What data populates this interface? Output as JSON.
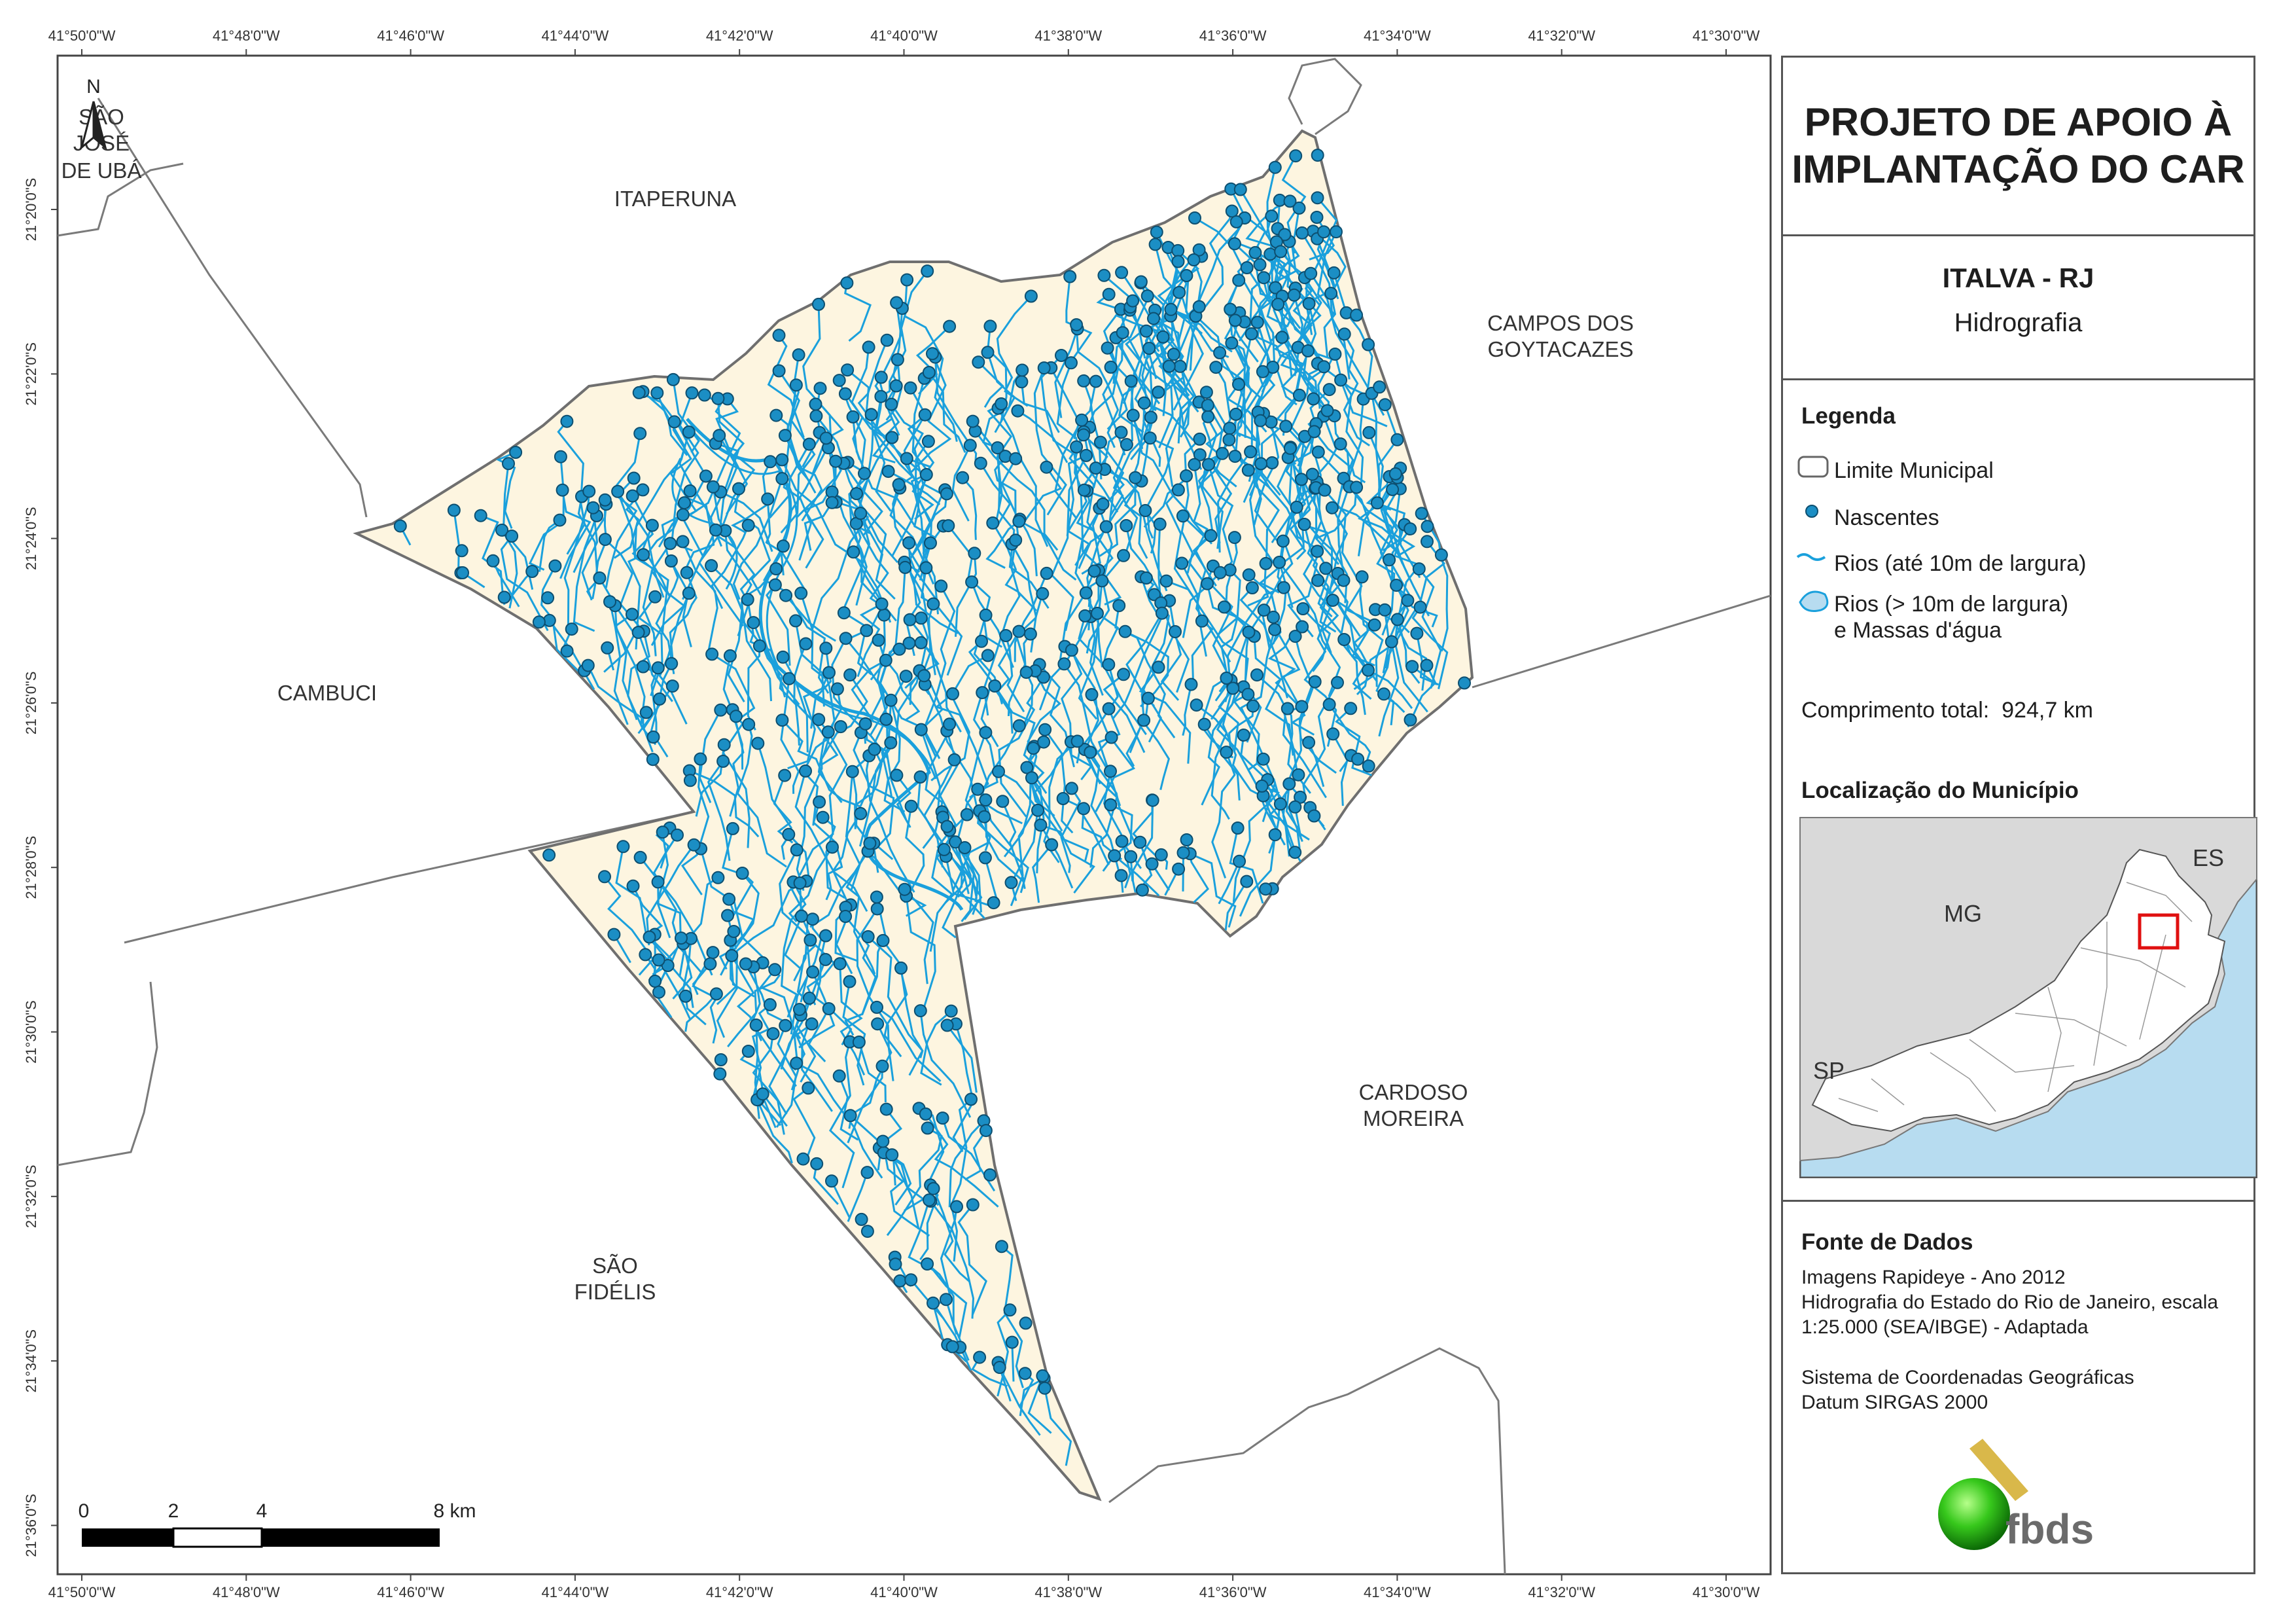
{
  "title": {
    "line1": "PROJETO DE APOIO À",
    "line2": "IMPLANTAÇÃO DO CAR"
  },
  "subtitle": {
    "municipality": "ITALVA - RJ",
    "theme": "Hidrografia"
  },
  "legend": {
    "heading": "Legenda",
    "items": [
      {
        "label": "Limite Municipal",
        "icon": "boundary-rect-icon"
      },
      {
        "label": "Nascentes",
        "icon": "spring-dot-icon"
      },
      {
        "label": "Rios (até 10m de largura)",
        "icon": "river-line-icon"
      },
      {
        "label": "Rios (> 10m de largura)",
        "label2": "e Massas d'água",
        "icon": "water-body-icon"
      }
    ],
    "total_length_label": "Comprimento total:",
    "total_length_value": "924,7 km"
  },
  "location": {
    "heading": "Localização do Município",
    "states": {
      "mg": "MG",
      "es": "ES",
      "sp": "SP"
    }
  },
  "sources": {
    "heading": "Fonte de Dados",
    "line1": "Imagens Rapideye - Ano 2012",
    "line2": "Hidrografia do Estado do Rio de Janeiro, escala",
    "line3": "1:25.000 (SEA/IBGE) - Adaptada",
    "line4": "Sistema de Coordenadas Geográficas",
    "line5": "Datum SIRGAS 2000"
  },
  "logo": {
    "text": "fbds"
  },
  "north_arrow": {
    "label": "N"
  },
  "scale_bar": {
    "labels": [
      "0",
      "2",
      "4",
      "8 km"
    ]
  },
  "coordinates": {
    "longitude": [
      "41°50'0\"W",
      "41°48'0\"W",
      "41°46'0\"W",
      "41°44'0\"W",
      "41°42'0\"W",
      "41°40'0\"W",
      "41°38'0\"W",
      "41°36'0\"W",
      "41°34'0\"W",
      "41°32'0\"W",
      "41°30'0\"W"
    ],
    "latitude": [
      "21°20'0\"S",
      "21°22'0\"S",
      "21°24'0\"S",
      "21°26'0\"S",
      "21°28'0\"S",
      "21°30'0\"S",
      "21°32'0\"S",
      "21°34'0\"S",
      "21°36'0\"S"
    ]
  },
  "neighbors": {
    "sao_jose_de_uba": [
      "SÃO",
      "JOSÉ",
      "DE UBÁ"
    ],
    "itaperuna": [
      "ITAPERUNA"
    ],
    "campos": [
      "CAMPOS DOS",
      "GOYTACAZES"
    ],
    "cambuci": [
      "CAMBUCI"
    ],
    "cardoso_moreira": [
      "CARDOSO",
      "MOREIRA"
    ],
    "sao_fidelis": [
      "SÃO",
      "FIDÉLIS"
    ]
  },
  "colors": {
    "municipality_fill": "#fdf5e0",
    "river": "#1aa0dc",
    "spring": "#1b8ec4",
    "boundary": "#707070",
    "ocean": "#b7dcf0",
    "inset_land": "#d9d9d9",
    "highlight": "#e01010"
  }
}
